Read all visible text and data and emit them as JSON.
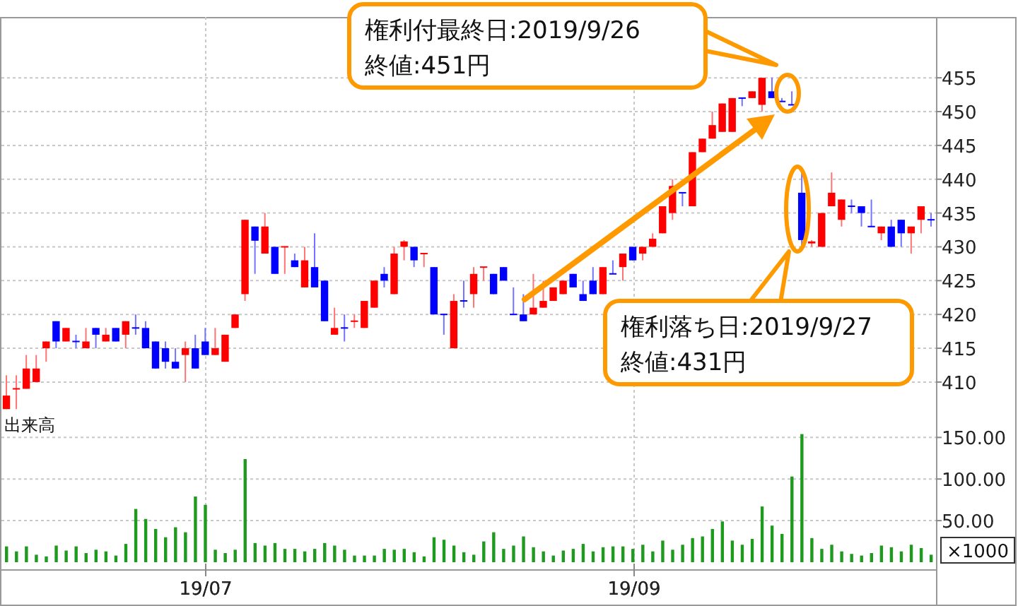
{
  "chart_data": [
    {
      "type": "candlestick",
      "categories": [
        null,
        null,
        null,
        null,
        null,
        null,
        null,
        null,
        null,
        null,
        null,
        null,
        null,
        null,
        null,
        null,
        null,
        null,
        null,
        null,
        "19/07",
        null,
        null,
        null,
        null,
        null,
        null,
        null,
        null,
        null,
        null,
        null,
        null,
        null,
        null,
        null,
        null,
        null,
        null,
        null,
        null,
        null,
        null,
        null,
        null,
        null,
        null,
        null,
        null,
        null,
        null,
        null,
        null,
        null,
        null,
        null,
        null,
        null,
        null,
        null,
        null,
        null,
        null,
        "19/09",
        null,
        null,
        null,
        null,
        null,
        null,
        null,
        null,
        null,
        null,
        null,
        null,
        null,
        null,
        null,
        null,
        null,
        null,
        null,
        null,
        null,
        null,
        null,
        null,
        null,
        null,
        null,
        null,
        null,
        null
      ],
      "ohlc": [
        [
          406,
          411,
          406,
          408
        ],
        [
          409,
          411,
          406,
          409
        ],
        [
          409,
          414,
          409,
          412
        ],
        [
          410,
          414,
          410,
          412
        ],
        [
          415,
          416,
          413,
          416
        ],
        [
          419,
          419,
          415,
          416
        ],
        [
          416,
          418,
          416,
          418
        ],
        [
          416,
          417,
          415,
          416
        ],
        [
          415,
          418,
          415,
          416
        ],
        [
          418,
          418,
          415,
          417
        ],
        [
          416,
          418,
          416,
          417
        ],
        [
          418,
          418,
          416,
          416
        ],
        [
          417,
          419,
          415,
          419
        ],
        [
          418,
          420,
          417,
          418
        ],
        [
          418,
          419,
          415,
          415
        ],
        [
          416,
          416,
          412,
          412
        ],
        [
          415,
          416,
          412,
          413
        ],
        [
          413,
          415,
          412,
          412
        ],
        [
          414,
          416,
          410,
          415
        ],
        [
          415,
          417,
          412,
          412
        ],
        [
          416,
          418,
          414,
          414
        ],
        [
          414,
          418,
          414,
          415
        ],
        [
          413,
          417,
          413,
          417
        ],
        [
          418,
          420,
          418,
          420
        ],
        [
          423,
          434,
          422,
          434
        ],
        [
          433,
          433,
          426,
          430.9
        ],
        [
          429,
          435,
          429,
          433
        ],
        [
          430,
          430,
          426,
          426
        ],
        [
          430,
          430,
          426,
          430
        ],
        [
          428,
          429,
          427,
          427
        ],
        [
          424,
          430,
          424,
          428
        ],
        [
          427,
          432,
          424,
          424
        ],
        [
          425,
          425,
          419,
          419
        ],
        [
          417,
          421,
          417,
          418
        ],
        [
          418,
          420,
          416,
          418
        ],
        [
          419,
          420,
          418,
          419
        ],
        [
          418,
          422,
          418,
          422
        ],
        [
          421,
          425,
          421,
          425
        ],
        [
          426,
          427,
          424,
          425
        ],
        [
          423,
          430,
          423,
          429
        ],
        [
          430,
          431,
          428,
          430.8
        ],
        [
          430,
          430,
          427,
          428
        ],
        [
          429,
          429,
          427,
          429
        ],
        [
          427,
          427,
          420,
          420
        ],
        [
          420,
          420,
          417,
          420
        ],
        [
          415,
          423,
          415,
          422
        ],
        [
          422,
          425,
          421,
          422
        ],
        [
          423,
          427,
          421,
          426
        ],
        [
          427,
          427,
          425,
          427
        ],
        [
          426,
          426,
          423,
          423
        ],
        [
          427,
          427,
          425,
          425
        ],
        [
          420,
          424,
          420,
          420
        ],
        [
          420,
          423,
          419,
          419
        ],
        [
          420,
          426,
          420,
          421
        ],
        [
          421,
          425,
          421,
          422
        ],
        [
          422,
          424,
          422,
          424
        ],
        [
          423,
          425,
          423,
          425
        ],
        [
          426,
          426,
          424,
          424
        ],
        [
          423,
          425,
          422,
          422
        ],
        [
          425,
          427,
          423,
          423
        ],
        [
          423,
          427,
          423,
          427
        ],
        [
          426,
          428,
          426,
          426
        ],
        [
          427,
          429,
          425,
          429
        ],
        [
          430,
          430,
          428,
          428
        ],
        [
          429,
          430,
          428,
          430
        ],
        [
          430,
          432,
          430,
          431.2
        ],
        [
          432,
          436,
          432,
          436
        ],
        [
          435,
          440,
          434,
          439
        ],
        [
          438,
          438,
          436,
          438
        ],
        [
          436,
          444,
          436,
          444
        ],
        [
          444,
          446,
          444,
          446
        ],
        [
          446,
          450,
          446,
          448
        ],
        [
          447,
          451.2,
          447,
          451.2
        ],
        [
          447,
          452,
          447,
          452
        ],
        [
          452,
          452,
          450.8,
          452
        ],
        [
          452,
          453,
          452,
          453
        ],
        [
          451,
          455,
          450,
          455
        ],
        [
          453,
          455,
          452,
          452
        ],
        [
          451.5,
          452,
          451.5,
          451.5
        ],
        [
          451,
          453,
          451,
          451
        ],
        [
          438,
          441,
          430,
          431
        ],
        [
          430.5,
          431,
          430,
          430.8
        ],
        [
          430,
          435,
          430,
          435
        ],
        [
          436,
          441,
          436,
          438
        ],
        [
          434,
          437,
          433,
          437
        ],
        [
          436,
          437,
          435,
          436
        ],
        [
          436,
          436,
          433,
          435
        ],
        [
          433,
          437,
          433,
          433
        ],
        [
          432,
          433,
          431,
          433
        ],
        [
          433,
          434,
          430,
          430
        ],
        [
          434,
          434,
          430,
          432
        ],
        [
          432,
          433,
          429,
          433
        ],
        [
          434,
          436,
          432,
          436
        ],
        [
          434,
          435,
          433,
          434
        ]
      ],
      "colors": [
        "#ff0000",
        "#ff0000",
        "#ff0000",
        "#ff0000",
        "#ff0000",
        "#0000ff",
        "#ff0000",
        "#0000ff",
        "#ff0000",
        "#0000ff",
        "#ff0000",
        "#0000ff",
        "#ff0000",
        "#0000ff",
        "#0000ff",
        "#0000ff",
        "#0000ff",
        "#0000ff",
        "#ff0000",
        "#0000ff",
        "#0000ff",
        "#ff0000",
        "#ff0000",
        "#ff0000",
        "#ff0000",
        "#0000ff",
        "#ff0000",
        "#0000ff",
        "#ff0000",
        "#0000ff",
        "#ff0000",
        "#0000ff",
        "#0000ff",
        "#ff0000",
        "#0000ff",
        "#ff0000",
        "#ff0000",
        "#ff0000",
        "#0000ff",
        "#ff0000",
        "#ff0000",
        "#0000ff",
        "#ff0000",
        "#0000ff",
        "#0000ff",
        "#ff0000",
        "#0000ff",
        "#ff0000",
        "#ff0000",
        "#0000ff",
        "#0000ff",
        "#0000ff",
        "#0000ff",
        "#ff0000",
        "#ff0000",
        "#ff0000",
        "#ff0000",
        "#0000ff",
        "#0000ff",
        "#0000ff",
        "#ff0000",
        "#0000ff",
        "#ff0000",
        "#0000ff",
        "#ff0000",
        "#ff0000",
        "#ff0000",
        "#ff0000",
        "#0000ff",
        "#ff0000",
        "#ff0000",
        "#ff0000",
        "#ff0000",
        "#ff0000",
        "#0000ff",
        "#ff0000",
        "#ff0000",
        "#0000ff",
        "#0000ff",
        "#0000ff",
        "#0000ff",
        "#ff0000",
        "#ff0000",
        "#ff0000",
        "#ff0000",
        "#0000ff",
        "#0000ff",
        "#0000ff",
        "#ff0000",
        "#0000ff",
        "#0000ff",
        "#ff0000",
        "#ff0000",
        "#0000ff"
      ],
      "ylim": [
        405.5,
        464
      ],
      "yticks": [
        410,
        415,
        420,
        425,
        430,
        435,
        440,
        445,
        450,
        455
      ],
      "grid": true,
      "tick_labels": "y",
      "annotations": [
        "権利付最終日:2019/9/26\n終値:451円",
        "権利落ち日:2019/9/27\n終値:431円"
      ]
    },
    {
      "type": "bar",
      "categories": [
        null,
        null,
        null,
        null,
        null,
        null,
        null,
        null,
        null,
        null,
        null,
        null,
        null,
        null,
        null,
        null,
        null,
        null,
        null,
        null,
        "19/07",
        null,
        null,
        null,
        null,
        null,
        null,
        null,
        null,
        null,
        null,
        null,
        null,
        null,
        null,
        null,
        null,
        null,
        null,
        null,
        null,
        null,
        null,
        null,
        null,
        null,
        null,
        null,
        null,
        null,
        null,
        null,
        null,
        null,
        null,
        null,
        null,
        null,
        null,
        null,
        null,
        null,
        null,
        "19/09",
        null,
        null,
        null,
        null,
        null,
        null,
        null,
        null,
        null,
        null,
        null,
        null,
        null,
        null,
        null,
        null,
        null,
        null,
        null,
        null,
        null,
        null,
        null,
        null,
        null,
        null,
        null,
        null,
        null,
        null
      ],
      "values": [
        19,
        13,
        19,
        9,
        7,
        20,
        14,
        19,
        11,
        15,
        13,
        8,
        22,
        64,
        52,
        40,
        30,
        42,
        36,
        79,
        69,
        15,
        11,
        15,
        124,
        23,
        20,
        23,
        16,
        16,
        13,
        16,
        23,
        20,
        15,
        8,
        8,
        8,
        16,
        15,
        16,
        12,
        7,
        30,
        27,
        20,
        12,
        9,
        25,
        36,
        16,
        20,
        31,
        18,
        13,
        8,
        14,
        16,
        22,
        13,
        18,
        19,
        19,
        16,
        21,
        13,
        26,
        15,
        21,
        29,
        31,
        40,
        49,
        26,
        21,
        28,
        67,
        44,
        34,
        103,
        154,
        29,
        16,
        21,
        13,
        10,
        8,
        11,
        20,
        18,
        13,
        21,
        17,
        9
      ],
      "color": "#1e9a1e",
      "ylim": [
        0,
        180
      ],
      "yticks": [
        {
          "value": 50,
          "label": "50.00"
        },
        {
          "value": 100,
          "label": "100.00"
        },
        {
          "value": 150,
          "label": "150.00"
        }
      ],
      "grid": true,
      "annotations": [
        "出来高",
        "×1000"
      ]
    }
  ]
}
